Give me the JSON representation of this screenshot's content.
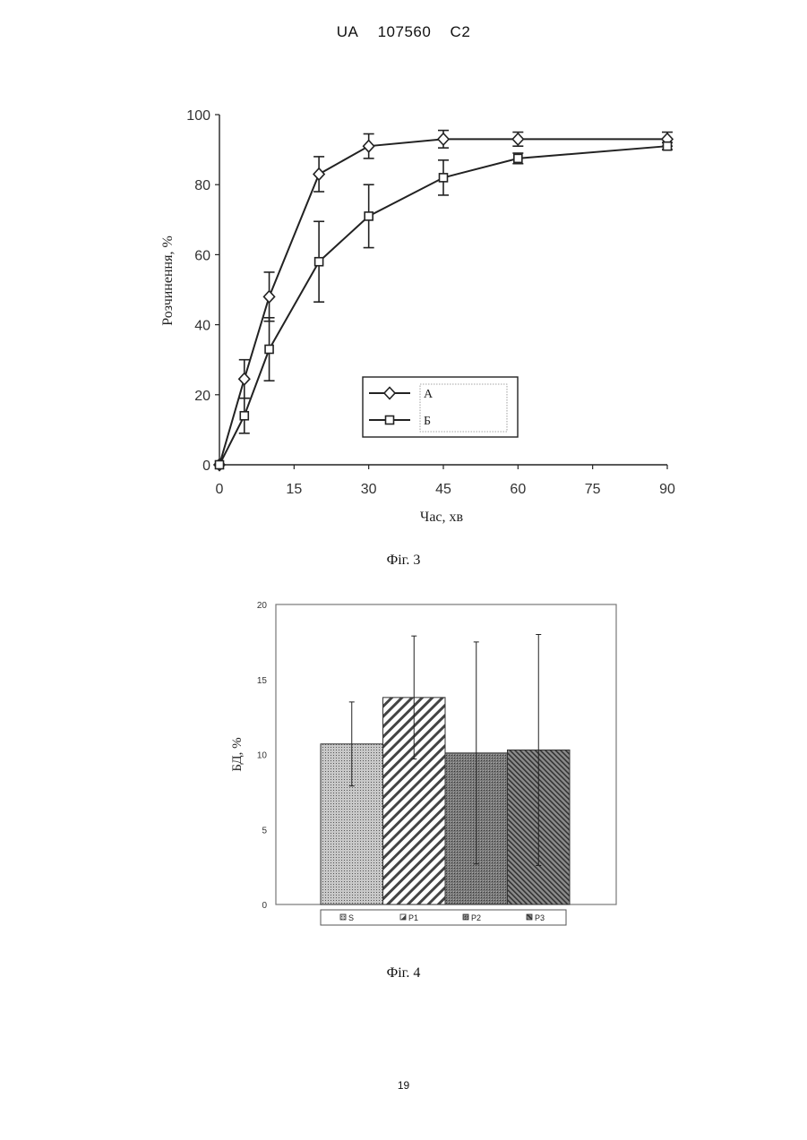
{
  "header": {
    "country": "UA",
    "number": "107560",
    "kind": "C2"
  },
  "figures": {
    "fig3_caption": "Фіг. 3",
    "fig4_caption": "Фіг. 4"
  },
  "page_number": "19",
  "colors": {
    "ink": "#222222",
    "bar_fill": "#9a9a9a"
  },
  "chart_data": [
    {
      "type": "line",
      "xlabel": "Час, хв",
      "ylabel": "Розчинення, %",
      "xlim": [
        0,
        90
      ],
      "ylim": [
        0,
        100
      ],
      "xticks": [
        0,
        15,
        30,
        45,
        60,
        75,
        90
      ],
      "yticks": [
        0,
        20,
        40,
        60,
        80,
        100
      ],
      "legend_position": "lower-right",
      "series": [
        {
          "name": "А",
          "marker": "diamond",
          "x": [
            0,
            5,
            10,
            20,
            30,
            45,
            60,
            90
          ],
          "y": [
            0,
            24.5,
            48,
            83,
            91,
            93,
            93,
            93
          ],
          "err": [
            0,
            5.5,
            7,
            5,
            3.5,
            2.5,
            2,
            2
          ]
        },
        {
          "name": "Б",
          "marker": "square",
          "x": [
            0,
            5,
            10,
            20,
            30,
            45,
            60,
            90
          ],
          "y": [
            0,
            14,
            33,
            58,
            71,
            82,
            87.5,
            91
          ],
          "err": [
            0,
            5,
            9,
            11.5,
            9,
            5,
            1.5,
            1
          ]
        }
      ]
    },
    {
      "type": "bar",
      "ylabel": "БД, %",
      "ylim": [
        0,
        20
      ],
      "yticks": [
        0,
        5,
        10,
        15,
        20
      ],
      "legend_position": "bottom",
      "categories": [
        "S",
        "P1",
        "P2",
        "P3"
      ],
      "values": [
        10.7,
        13.8,
        10.1,
        10.3
      ],
      "err": [
        2.8,
        4.1,
        7.4,
        7.7
      ],
      "patterns": [
        "dots",
        "diagonal-wide",
        "dense-cross",
        "diagonal-dense"
      ]
    }
  ]
}
